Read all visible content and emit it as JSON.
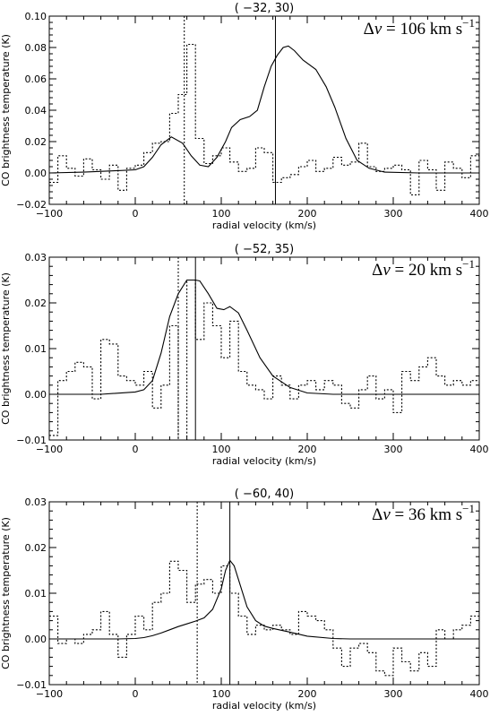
{
  "chart_data": [
    {
      "type": "line",
      "title": "( −32, 30)",
      "xlabel": "radial velocity (km/s)",
      "ylabel": "CO brightness temperature (K)",
      "xlim": [
        -100,
        400
      ],
      "ylim": [
        -0.02,
        0.1
      ],
      "xticks": [
        -100,
        0,
        100,
        200,
        300,
        400
      ],
      "yticks": [
        -0.02,
        0.0,
        0.02,
        0.04,
        0.06,
        0.08,
        0.1
      ],
      "ytick_labels": [
        "−0.02",
        "0.00",
        "0.02",
        "0.04",
        "0.06",
        "0.08",
        "0.10"
      ],
      "xtick_labels": [
        "−100",
        "0",
        "100",
        "200",
        "300",
        "400"
      ],
      "annotation": {
        "prefix": "Δ",
        "var": "v",
        "text": " = 106  km s",
        "sup": "−1"
      },
      "vline_solid": 163,
      "vline_dotted": 57,
      "series": [
        {
          "style": "solid",
          "x": [
            -100,
            -60,
            -20,
            0,
            10,
            20,
            30,
            42,
            55,
            65,
            75,
            85,
            95,
            105,
            112,
            122,
            133,
            142,
            150,
            158,
            165,
            172,
            178,
            185,
            195,
            210,
            222,
            232,
            245,
            258,
            272,
            290,
            330,
            400
          ],
          "y": [
            0.0,
            0.0005,
            0.0015,
            0.002,
            0.004,
            0.01,
            0.018,
            0.023,
            0.019,
            0.011,
            0.005,
            0.004,
            0.01,
            0.02,
            0.029,
            0.034,
            0.036,
            0.04,
            0.055,
            0.068,
            0.075,
            0.08,
            0.081,
            0.078,
            0.072,
            0.066,
            0.055,
            0.042,
            0.022,
            0.008,
            0.003,
            0.0005,
            0.0,
            0.0
          ]
        },
        {
          "style": "dotted-step",
          "x": [
            -100,
            -90,
            -80,
            -70,
            -60,
            -50,
            -40,
            -30,
            -20,
            -10,
            0,
            10,
            20,
            30,
            40,
            50,
            60,
            70,
            80,
            90,
            100,
            110,
            120,
            130,
            140,
            150,
            160,
            170,
            180,
            190,
            200,
            210,
            220,
            230,
            240,
            250,
            260,
            270,
            280,
            290,
            300,
            310,
            320,
            330,
            340,
            350,
            360,
            370,
            380,
            390
          ],
          "y": [
            -0.006,
            0.011,
            0.003,
            -0.002,
            0.009,
            0.002,
            -0.004,
            0.005,
            -0.011,
            0.003,
            0.005,
            0.013,
            0.019,
            0.02,
            0.038,
            0.05,
            0.082,
            0.022,
            0.006,
            0.011,
            0.016,
            0.007,
            0.001,
            0.003,
            0.016,
            0.013,
            -0.006,
            -0.003,
            -0.001,
            0.004,
            0.008,
            0.001,
            0.003,
            0.01,
            0.005,
            0.007,
            0.019,
            0.004,
            0.001,
            0.003,
            0.005,
            0.002,
            -0.014,
            0.008,
            0.002,
            -0.011,
            0.007,
            0.003,
            -0.003,
            0.011
          ]
        }
      ]
    },
    {
      "type": "line",
      "title": "( −52, 35)",
      "xlabel": "radial velocity (km/s)",
      "ylabel": "CO brightness temperature (K)",
      "xlim": [
        -100,
        400
      ],
      "ylim": [
        -0.01,
        0.03
      ],
      "xticks": [
        -100,
        0,
        100,
        200,
        300,
        400
      ],
      "yticks": [
        -0.01,
        0.0,
        0.01,
        0.02,
        0.03
      ],
      "ytick_labels": [
        "−0.01",
        "0.00",
        "0.01",
        "0.02",
        "0.03"
      ],
      "xtick_labels": [
        "−100",
        "0",
        "100",
        "200",
        "300",
        "400"
      ],
      "annotation": {
        "prefix": "Δ",
        "var": "v",
        "text": " = 20  km s",
        "sup": "−1"
      },
      "vline_solid": 70,
      "vline_dotted": 50,
      "series": [
        {
          "style": "solid",
          "x": [
            -100,
            -40,
            0,
            10,
            20,
            30,
            40,
            50,
            60,
            70,
            75,
            85,
            95,
            103,
            110,
            120,
            130,
            145,
            160,
            180,
            200,
            230,
            300,
            400
          ],
          "y": [
            0.0,
            0.0,
            0.0005,
            0.001,
            0.003,
            0.009,
            0.017,
            0.022,
            0.025,
            0.025,
            0.0248,
            0.022,
            0.0188,
            0.0185,
            0.0192,
            0.0178,
            0.014,
            0.008,
            0.004,
            0.0015,
            0.0003,
            0.0,
            0.0,
            0.0
          ]
        },
        {
          "style": "dotted-step",
          "x": [
            -100,
            -90,
            -80,
            -70,
            -60,
            -50,
            -40,
            -30,
            -20,
            -10,
            0,
            10,
            20,
            30,
            40,
            50,
            60,
            70,
            80,
            90,
            100,
            110,
            120,
            130,
            140,
            150,
            160,
            170,
            180,
            190,
            200,
            210,
            220,
            230,
            240,
            250,
            260,
            270,
            280,
            290,
            300,
            310,
            320,
            330,
            340,
            350,
            360,
            370,
            380,
            390
          ],
          "y": [
            -0.009,
            0.003,
            0.005,
            0.007,
            0.006,
            -0.001,
            0.012,
            0.011,
            0.004,
            0.003,
            0.002,
            0.005,
            -0.003,
            0.002,
            0.015,
            -0.01,
            0.025,
            0.012,
            0.02,
            0.015,
            0.008,
            0.016,
            0.005,
            0.002,
            0.001,
            -0.001,
            0.004,
            0.002,
            -0.001,
            0.002,
            0.003,
            0.001,
            0.003,
            0.002,
            -0.002,
            -0.003,
            0.001,
            0.004,
            -0.001,
            0.001,
            -0.004,
            0.005,
            0.003,
            0.006,
            0.008,
            0.004,
            0.002,
            0.003,
            0.002,
            0.003
          ]
        }
      ]
    },
    {
      "type": "line",
      "title": "( −60, 40)",
      "xlabel": "radial velocity (km/s)",
      "ylabel": "CO brightness temperature (K)",
      "xlim": [
        -100,
        400
      ],
      "ylim": [
        -0.01,
        0.03
      ],
      "xticks": [
        -100,
        0,
        100,
        200,
        300,
        400
      ],
      "yticks": [
        -0.01,
        0.0,
        0.01,
        0.02,
        0.03
      ],
      "ytick_labels": [
        "−0.01",
        "0.00",
        "0.01",
        "0.02",
        "0.03"
      ],
      "xtick_labels": [
        "−100",
        "0",
        "100",
        "200",
        "300",
        "400"
      ],
      "annotation": {
        "prefix": "Δ",
        "var": "v",
        "text": " = 36  km s",
        "sup": "−1"
      },
      "vline_solid": 110,
      "vline_dotted": 72,
      "series": [
        {
          "style": "solid",
          "x": [
            -100,
            -20,
            0,
            10,
            20,
            30,
            40,
            50,
            60,
            70,
            80,
            90,
            100,
            105,
            110,
            115,
            120,
            130,
            140,
            150,
            160,
            180,
            200,
            230,
            250,
            300,
            400
          ],
          "y": [
            0.0,
            0.0,
            0.0001,
            0.0003,
            0.0007,
            0.0013,
            0.002,
            0.0027,
            0.0033,
            0.0039,
            0.0046,
            0.0065,
            0.011,
            0.015,
            0.0172,
            0.016,
            0.013,
            0.007,
            0.004,
            0.0028,
            0.0023,
            0.0015,
            0.0006,
            0.0001,
            0.0,
            0.0,
            0.0
          ]
        },
        {
          "style": "dotted-step",
          "x": [
            -100,
            -90,
            -80,
            -70,
            -60,
            -50,
            -40,
            -30,
            -20,
            -10,
            0,
            10,
            20,
            30,
            40,
            50,
            60,
            70,
            80,
            90,
            100,
            110,
            120,
            130,
            140,
            150,
            160,
            170,
            180,
            190,
            200,
            210,
            220,
            230,
            240,
            250,
            260,
            270,
            280,
            290,
            300,
            310,
            320,
            330,
            340,
            350,
            360,
            370,
            380,
            390
          ],
          "y": [
            0.005,
            -0.001,
            0.0,
            -0.001,
            0.001,
            0.002,
            0.006,
            0.001,
            -0.004,
            0.001,
            0.005,
            0.002,
            0.008,
            0.01,
            0.017,
            0.015,
            0.008,
            0.012,
            0.013,
            0.01,
            0.016,
            0.01,
            0.005,
            0.001,
            0.003,
            0.002,
            0.003,
            0.002,
            0.001,
            0.006,
            0.005,
            0.004,
            0.002,
            -0.002,
            -0.006,
            -0.002,
            -0.001,
            -0.003,
            -0.007,
            -0.008,
            -0.002,
            -0.005,
            -0.007,
            -0.003,
            -0.006,
            0.002,
            0.0,
            0.002,
            0.003,
            0.005
          ]
        }
      ]
    }
  ]
}
